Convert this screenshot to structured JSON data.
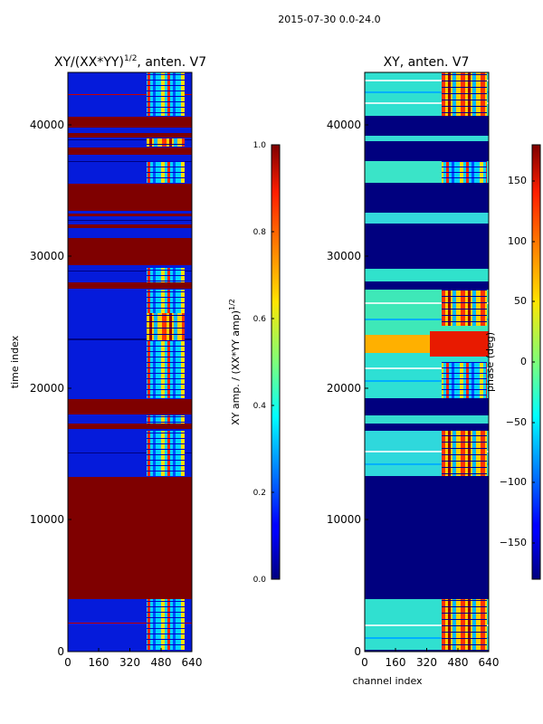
{
  "suptitle": "2015-07-30 0.0-24.0",
  "chart_data": [
    {
      "type": "heatmap",
      "title_main": "XY/(XX*YY)",
      "title_exp": "1/2",
      "title_rest": ", anten. V7",
      "ylabel": "time index",
      "xlabel": "",
      "x_ticks": [
        "0",
        "160",
        "320",
        "480",
        "640"
      ],
      "y_ticks": [
        "0",
        "10000",
        "20000",
        "30000",
        "40000"
      ],
      "xlim": [
        0,
        640
      ],
      "ylim": [
        0,
        44000
      ],
      "colormap": "jet",
      "colorbar": {
        "label_main": "XY amp. / (XX*YY amp)",
        "label_exp": "1/2",
        "ticks": [
          "0.0",
          "0.2",
          "0.4",
          "0.6",
          "0.8",
          "1.0"
        ],
        "range": [
          0.0,
          1.0
        ]
      }
    },
    {
      "type": "heatmap",
      "title_main": "XY, anten. V7",
      "ylabel": "",
      "xlabel": "channel index",
      "x_ticks": [
        "0",
        "160",
        "320",
        "480",
        "640"
      ],
      "y_ticks": [
        "0",
        "10000",
        "20000",
        "30000",
        "40000"
      ],
      "xlim": [
        0,
        640
      ],
      "ylim": [
        0,
        44000
      ],
      "colormap": "jet",
      "colorbar": {
        "label_main": "phase (deg)",
        "ticks": [
          "−150",
          "−100",
          "−50",
          "0",
          "50",
          "100",
          "150"
        ],
        "range": [
          -180,
          180
        ]
      }
    }
  ]
}
